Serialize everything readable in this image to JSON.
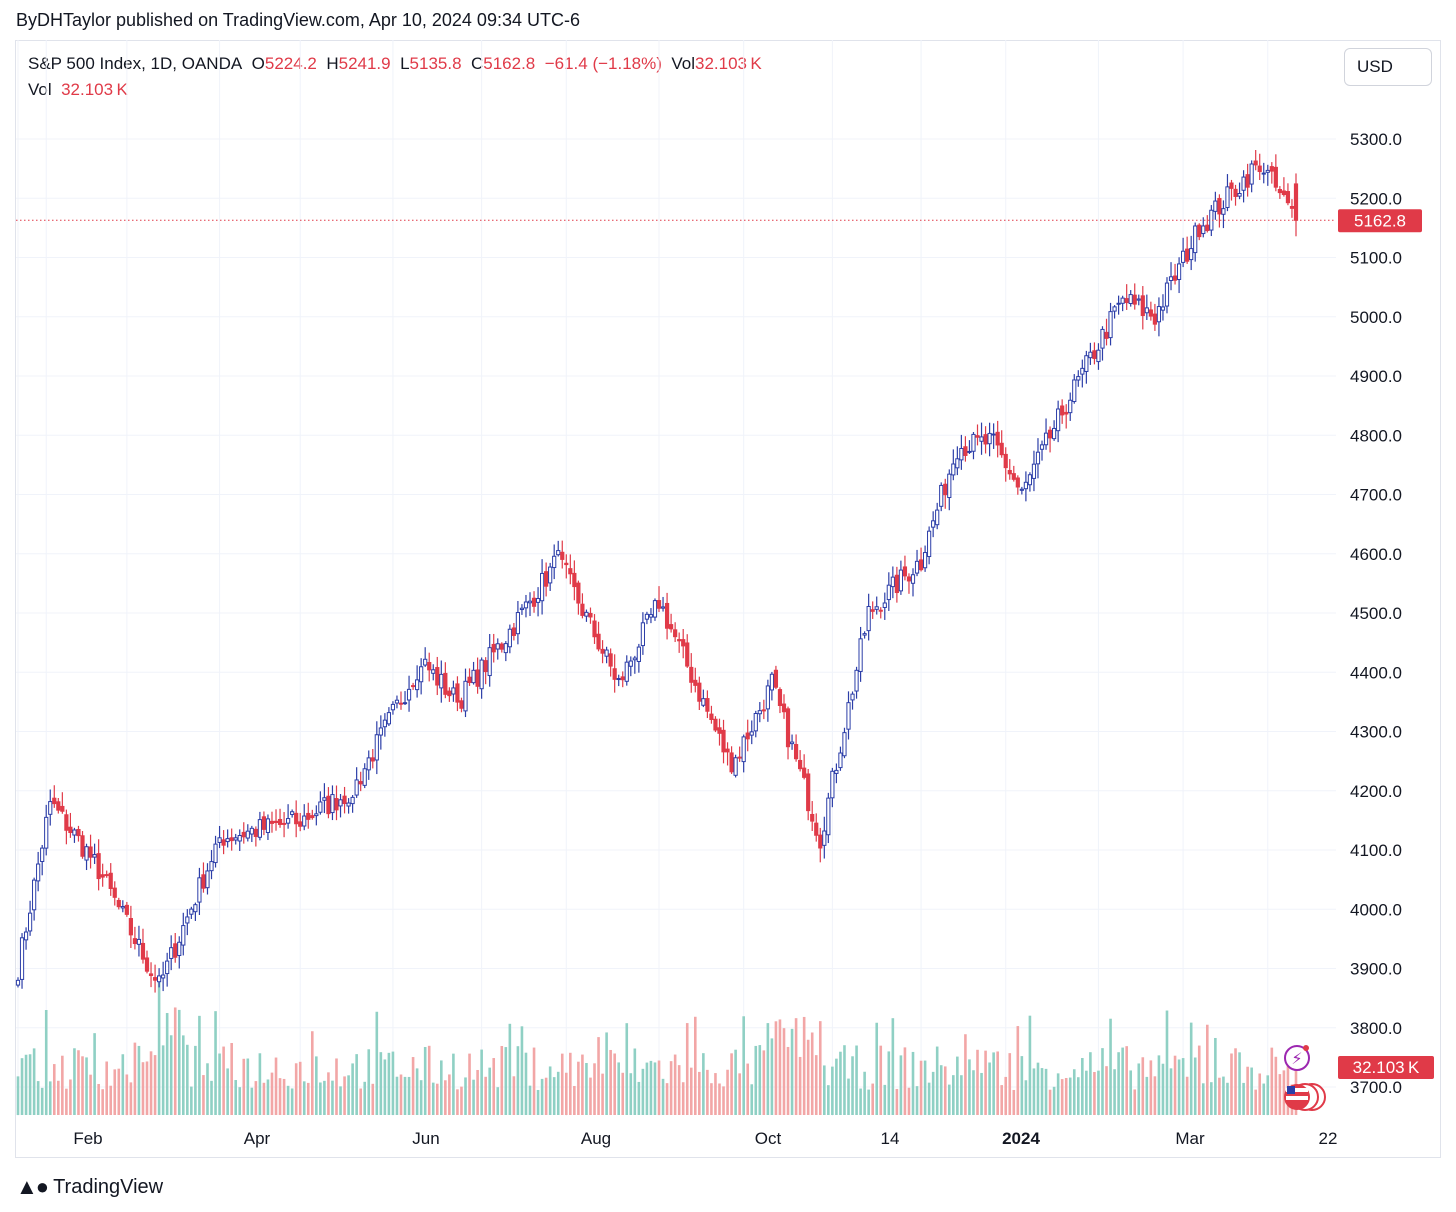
{
  "header": {
    "published": "ByDHTaylor published on TradingView.com, Apr 10, 2024 09:34 UTC-6"
  },
  "legend": {
    "symbol": "S&P 500 Index, 1D, OANDA",
    "o_label": "O",
    "o_value": "5224.2",
    "h_label": "H",
    "h_value": "5241.9",
    "l_label": "L",
    "l_value": "5135.8",
    "c_label": "C",
    "c_value": "5162.8",
    "change": "−61.4 (−1.18%)",
    "vol_label": "Vol",
    "vol_value": "32.103 K"
  },
  "currency_button": "USD",
  "brand": {
    "name": "TradingView",
    "icon": "tradingview-logo-icon"
  },
  "colors": {
    "up": "#2c3ea8",
    "down": "#e03a48",
    "vol_up": "#8fd0c4",
    "vol_down": "#f2a6a6"
  },
  "chart_data": {
    "type": "candlestick",
    "y_ticks": [
      "5300.0",
      "5200.0",
      "5100.0",
      "5000.0",
      "4900.0",
      "4800.0",
      "4700.0",
      "4600.0",
      "4500.0",
      "4400.0",
      "4300.0",
      "4200.0",
      "4100.0",
      "4000.0",
      "3900.0",
      "3800.0",
      "3700.0"
    ],
    "ylim": [
      3660,
      5340
    ],
    "x_ticks": [
      "Feb",
      "Apr",
      "Jun",
      "Aug",
      "Oct",
      "14",
      "2024",
      "Mar",
      "22"
    ],
    "last_price": 5162.8,
    "last_price_label": "5162.8",
    "last_volume_label": "32.103 K",
    "anchors": [
      {
        "date": "2023-01-23",
        "close": 3900
      },
      {
        "date": "2023-02-02",
        "close": 4180
      },
      {
        "date": "2023-02-17",
        "close": 4080
      },
      {
        "date": "2023-03-13",
        "close": 3870
      },
      {
        "date": "2023-04-03",
        "close": 4120
      },
      {
        "date": "2023-05-01",
        "close": 4150
      },
      {
        "date": "2023-05-18",
        "close": 4200
      },
      {
        "date": "2023-06-12",
        "close": 4420
      },
      {
        "date": "2023-06-23",
        "close": 4350
      },
      {
        "date": "2023-07-10",
        "close": 4450
      },
      {
        "date": "2023-07-28",
        "close": 4590
      },
      {
        "date": "2023-08-18",
        "close": 4380
      },
      {
        "date": "2023-09-01",
        "close": 4520
      },
      {
        "date": "2023-09-27",
        "close": 4240
      },
      {
        "date": "2023-10-11",
        "close": 4380
      },
      {
        "date": "2023-10-27",
        "close": 4120
      },
      {
        "date": "2023-11-14",
        "close": 4500
      },
      {
        "date": "2023-12-01",
        "close": 4590
      },
      {
        "date": "2023-12-14",
        "close": 4780
      },
      {
        "date": "2023-12-27",
        "close": 4790
      },
      {
        "date": "2024-01-05",
        "close": 4700
      },
      {
        "date": "2024-01-19",
        "close": 4840
      },
      {
        "date": "2024-02-09",
        "close": 5030
      },
      {
        "date": "2024-02-21",
        "close": 5000
      },
      {
        "date": "2024-03-07",
        "close": 5150
      },
      {
        "date": "2024-03-28",
        "close": 5260
      },
      {
        "date": "2024-04-10",
        "close": 5162.8
      }
    ]
  }
}
